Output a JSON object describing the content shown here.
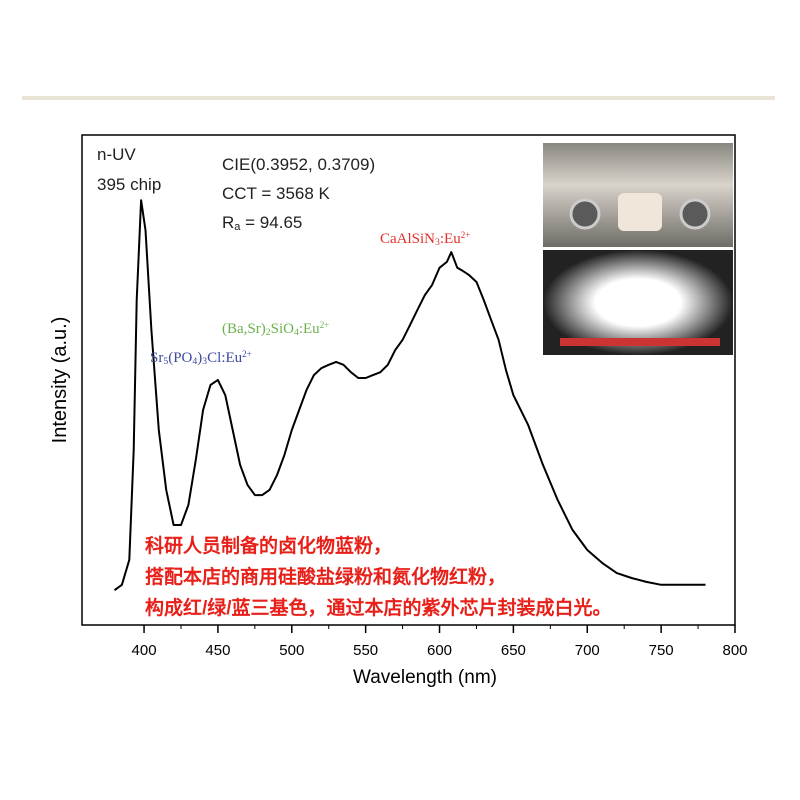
{
  "chart_data": {
    "type": "line",
    "xlabel": "Wavelength (nm)",
    "ylabel": "Intensity (a.u.)",
    "x": [
      380,
      385,
      390,
      393,
      395,
      398,
      401,
      405,
      410,
      415,
      420,
      425,
      430,
      435,
      440,
      445,
      450,
      455,
      460,
      465,
      470,
      475,
      480,
      485,
      490,
      495,
      500,
      505,
      510,
      515,
      520,
      525,
      530,
      535,
      540,
      545,
      550,
      555,
      560,
      565,
      570,
      575,
      580,
      585,
      590,
      595,
      600,
      605,
      608,
      612,
      615,
      620,
      625,
      630,
      635,
      640,
      645,
      650,
      660,
      670,
      680,
      690,
      700,
      710,
      720,
      730,
      740,
      750,
      760,
      770,
      780
    ],
    "series": [
      {
        "color": "#000000",
        "values": [
          0.071,
          0.082,
          0.133,
          0.357,
          0.663,
          0.867,
          0.806,
          0.602,
          0.398,
          0.276,
          0.204,
          0.204,
          0.245,
          0.337,
          0.439,
          0.49,
          0.5,
          0.469,
          0.398,
          0.327,
          0.286,
          0.265,
          0.265,
          0.276,
          0.306,
          0.347,
          0.398,
          0.439,
          0.48,
          0.51,
          0.524,
          0.531,
          0.537,
          0.531,
          0.516,
          0.504,
          0.504,
          0.51,
          0.516,
          0.531,
          0.561,
          0.582,
          0.612,
          0.643,
          0.673,
          0.694,
          0.729,
          0.741,
          0.761,
          0.729,
          0.724,
          0.714,
          0.7,
          0.663,
          0.622,
          0.582,
          0.52,
          0.469,
          0.408,
          0.327,
          0.255,
          0.194,
          0.153,
          0.127,
          0.106,
          0.096,
          0.088,
          0.082,
          0.082,
          0.082,
          0.082
        ]
      }
    ],
    "xlim": [
      358,
      800
    ],
    "ylim": [
      0,
      1
    ],
    "xticks": [
      400,
      450,
      500,
      550,
      600,
      650,
      700,
      750,
      800
    ],
    "annotations": [
      {
        "color": "#222222",
        "parts": [
          {
            "t": "n-UV"
          }
        ]
      },
      {
        "color": "#222222",
        "parts": [
          {
            "t": "395 chip"
          }
        ]
      },
      {
        "color": "#222222",
        "parts": [
          {
            "t": "CIE(0.3952, 0.3709)"
          }
        ]
      },
      {
        "color": "#222222",
        "parts": [
          {
            "t": "CCT = 3568 K"
          }
        ]
      },
      {
        "color": "#222222",
        "parts": [
          {
            "t": "R"
          },
          {
            "t": "a",
            "s": "sub"
          },
          {
            "t": " = 94.65"
          }
        ]
      },
      {
        "color": "#e0302a",
        "parts": [
          {
            "t": "CaAlSiN"
          },
          {
            "t": "3",
            "s": "sub"
          },
          {
            "t": ":Eu"
          },
          {
            "t": "2+",
            "s": "sup"
          }
        ]
      },
      {
        "color": "#6ab04c",
        "parts": [
          {
            "t": "(Ba,Sr)"
          },
          {
            "t": "2",
            "s": "sub"
          },
          {
            "t": "SiO"
          },
          {
            "t": "4",
            "s": "sub"
          },
          {
            "t": ":Eu"
          },
          {
            "t": "2+",
            "s": "sup"
          }
        ]
      },
      {
        "color": "#3b4a9c",
        "parts": [
          {
            "t": "Sr"
          },
          {
            "t": "5",
            "s": "sub"
          },
          {
            "t": "(PO"
          },
          {
            "t": "4",
            "s": "sub"
          },
          {
            "t": ")"
          },
          {
            "t": "3",
            "s": "sub"
          },
          {
            "t": "Cl:Eu"
          },
          {
            "t": "2+",
            "s": "sup"
          }
        ]
      }
    ],
    "notes": [
      "科研人员制备的卤化物蓝粉，",
      "搭配本店的商用硅酸盐绿粉和氮化物红粉，",
      "构成红/绿/蓝三基色，通过本店的紫外芯片封装成白光。"
    ],
    "notes_color": "#e8201a"
  }
}
